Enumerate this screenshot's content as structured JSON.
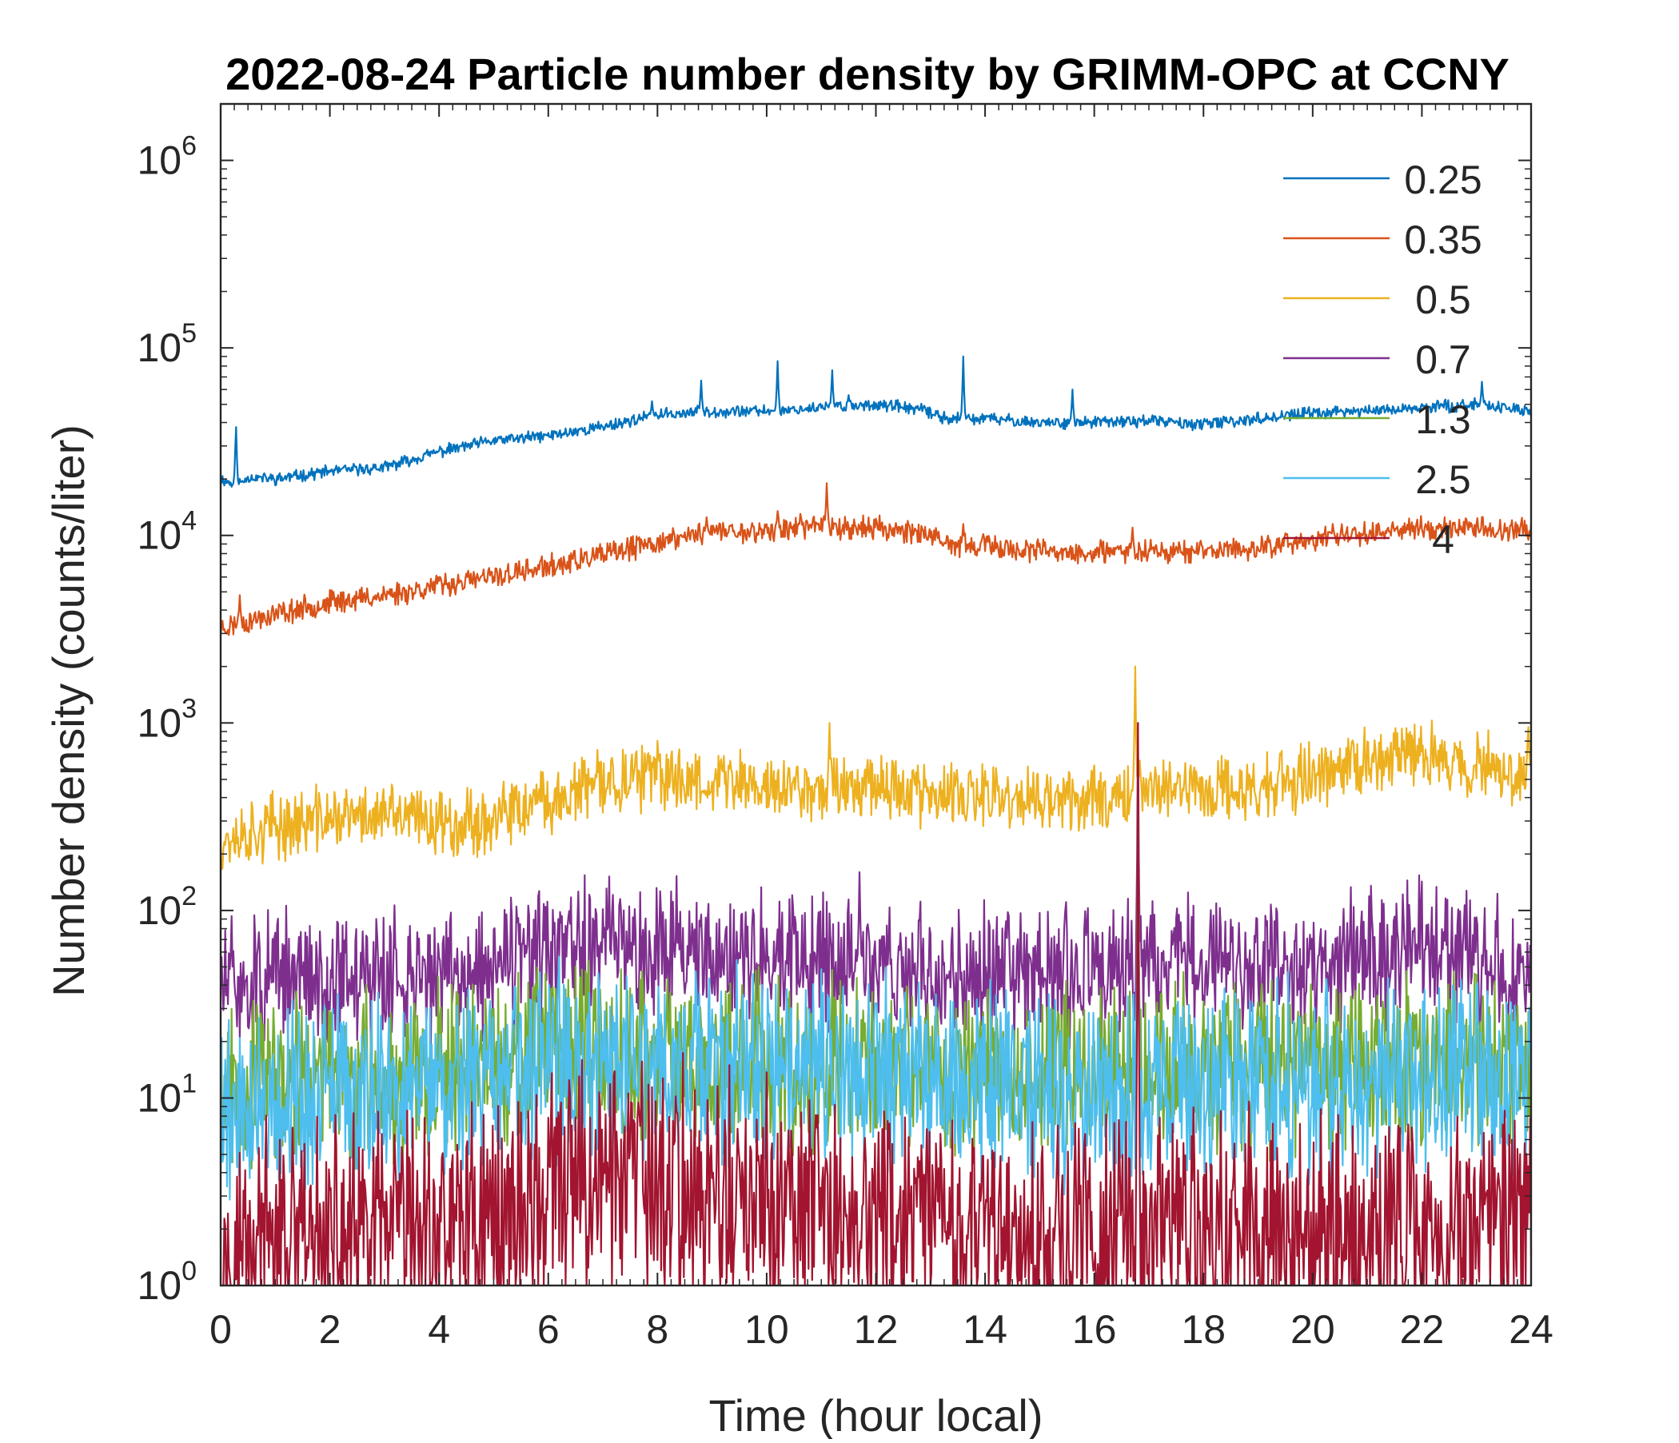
{
  "chart_data": {
    "type": "line",
    "title": "2022-08-24 Particle number density by GRIMM-OPC at CCNY",
    "xlabel": "Time (hour local)",
    "ylabel": "Number density (counts/liter)",
    "xlim": [
      0,
      24
    ],
    "ylim": [
      1,
      2000000
    ],
    "yscale": "log",
    "x_ticks": [
      0,
      2,
      4,
      6,
      8,
      10,
      12,
      14,
      16,
      18,
      20,
      22,
      24
    ],
    "x_tick_labels": [
      "0",
      "2",
      "4",
      "6",
      "8",
      "10",
      "12",
      "14",
      "16",
      "18",
      "20",
      "22",
      "24"
    ],
    "y_ticks": [
      {
        "value": 1,
        "base": "10",
        "exp": "0"
      },
      {
        "value": 10,
        "base": "10",
        "exp": "1"
      },
      {
        "value": 100,
        "base": "10",
        "exp": "2"
      },
      {
        "value": 1000,
        "base": "10",
        "exp": "3"
      },
      {
        "value": 10000,
        "base": "10",
        "exp": "4"
      },
      {
        "value": 100000,
        "base": "10",
        "exp": "5"
      },
      {
        "value": 1000000,
        "base": "10",
        "exp": "6"
      }
    ],
    "legend_position": "top-right",
    "series": [
      {
        "name": "0.25",
        "color": "#0072BD",
        "x": [
          0,
          0.3,
          0.5,
          1,
          2,
          3,
          4,
          5,
          6,
          7,
          8,
          9,
          10,
          11,
          12,
          12.8,
          13.3,
          14,
          15,
          16,
          17,
          18,
          19,
          20,
          21,
          22,
          23,
          24
        ],
        "values": [
          20000,
          18500,
          20500,
          20000,
          22000,
          23000,
          28000,
          32000,
          34000,
          38000,
          44000,
          46000,
          46000,
          48000,
          50000,
          47000,
          42000,
          42000,
          40000,
          40000,
          41000,
          39000,
          42000,
          45000,
          46000,
          48000,
          50000,
          46000
        ],
        "spikes": [
          [
            0.28,
            42000
          ],
          [
            7.9,
            52000
          ],
          [
            8.8,
            67000
          ],
          [
            10.2,
            85000
          ],
          [
            11.2,
            76000
          ],
          [
            11.5,
            56000
          ],
          [
            13.6,
            90000
          ],
          [
            15.6,
            60000
          ],
          [
            23.1,
            66000
          ]
        ],
        "noise_amp": 0.025,
        "seed": 11
      },
      {
        "name": "0.35",
        "color": "#D95319",
        "x": [
          0,
          1,
          2,
          3,
          4,
          5,
          6,
          7,
          8,
          9,
          10,
          11,
          11.5,
          12,
          12.8,
          13.2,
          14,
          15,
          16,
          17,
          18,
          19,
          20,
          21,
          22,
          23,
          24
        ],
        "values": [
          3200,
          3800,
          4400,
          4800,
          5400,
          6000,
          6800,
          7800,
          9200,
          10500,
          10500,
          11500,
          11000,
          11000,
          10500,
          9000,
          8800,
          8200,
          8000,
          8400,
          8200,
          8600,
          9500,
          10500,
          11000,
          11000,
          10500
        ],
        "spikes": [
          [
            0.35,
            4800
          ],
          [
            8.9,
            12500
          ],
          [
            10.2,
            13500
          ],
          [
            11.1,
            19000
          ],
          [
            13.6,
            11500
          ],
          [
            16.7,
            11000
          ]
        ],
        "noise_amp": 0.05,
        "seed": 23
      },
      {
        "name": "0.5",
        "color": "#EDB120",
        "x": [
          0,
          1,
          2,
          3,
          4,
          5,
          6,
          7,
          8,
          9,
          10,
          11,
          11.8,
          12.5,
          13,
          14,
          15,
          16,
          17,
          18,
          19,
          20,
          21,
          22,
          23,
          24
        ],
        "values": [
          240,
          280,
          310,
          320,
          300,
          300,
          380,
          480,
          520,
          500,
          460,
          440,
          500,
          460,
          400,
          400,
          380,
          400,
          460,
          440,
          450,
          520,
          640,
          680,
          580,
          560
        ],
        "spikes": [
          [
            11.15,
            1000
          ],
          [
            16.75,
            2000
          ],
          [
            23.95,
            950
          ]
        ],
        "noise_amp": 0.14,
        "seed": 37
      },
      {
        "name": "0.7",
        "color": "#7E2F8E",
        "x": [
          0,
          2,
          4,
          6,
          7,
          8,
          9,
          10,
          11,
          12,
          13,
          14,
          15,
          16,
          17,
          18,
          19,
          20,
          21,
          22,
          23,
          24
        ],
        "values": [
          40,
          45,
          45,
          55,
          65,
          65,
          60,
          55,
          55,
          50,
          45,
          45,
          45,
          45,
          50,
          50,
          50,
          50,
          55,
          60,
          55,
          50
        ],
        "spikes": [
          [
            11.7,
            160
          ],
          [
            16.8,
            1000
          ]
        ],
        "noise_amp": 0.28,
        "seed": 51
      },
      {
        "name": "1.3",
        "color": "#77AC30",
        "x": [
          0,
          4,
          7,
          8,
          10,
          12,
          14,
          16,
          18,
          20,
          22,
          24
        ],
        "values": [
          12,
          14,
          18,
          17,
          16,
          15,
          14,
          14,
          15,
          15,
          16,
          15
        ],
        "spikes": [
          [
            16.8,
            500
          ]
        ],
        "noise_amp": 0.35,
        "seed": 67
      },
      {
        "name": "2.5",
        "color": "#4DBEEE",
        "x": [
          0,
          4,
          7,
          8,
          10,
          12,
          14,
          16,
          18,
          20,
          22,
          24
        ],
        "values": [
          9,
          12,
          16,
          14,
          14,
          13,
          12,
          11,
          12,
          12,
          13,
          12
        ],
        "spikes": [
          [
            16.8,
            400
          ]
        ],
        "noise_amp": 0.4,
        "seed": 79
      },
      {
        "name": "4",
        "color": "#A2142F",
        "x": [
          0,
          2,
          4,
          6,
          7,
          8,
          10,
          12,
          14,
          16,
          18,
          20,
          22,
          24
        ],
        "values": [
          1.5,
          1.6,
          2,
          3,
          4,
          3.5,
          2.5,
          2.2,
          1.8,
          1.8,
          2,
          1.8,
          2,
          2
        ],
        "spikes": [
          [
            16.8,
            1000
          ]
        ],
        "noise_amp": 0.5,
        "seed": 97
      }
    ]
  }
}
